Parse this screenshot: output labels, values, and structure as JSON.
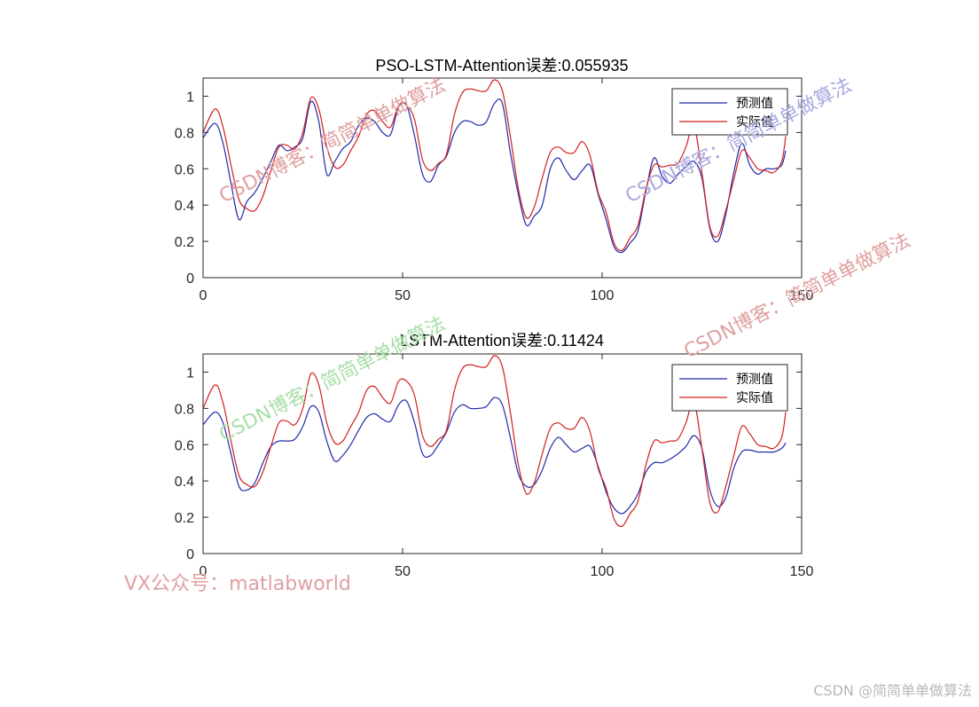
{
  "colors": {
    "predicted": "#1f2aa8",
    "actual": "#d21e1e",
    "axes": "#262626",
    "watermark_red": "#e0a0a0",
    "watermark_blue": "#a9a9e0",
    "watermark_green": "#a8dea8",
    "credit": "#b8b8b8"
  },
  "chart_data": [
    {
      "type": "line",
      "title": "PSO-LSTM-Attention误差:0.055935",
      "xlim": [
        0,
        150
      ],
      "ylim": [
        0,
        1.1
      ],
      "xticks": [
        "0",
        "50",
        "100",
        "150"
      ],
      "yticks": [
        "0",
        "0.2",
        "0.4",
        "0.6",
        "0.8",
        "1"
      ],
      "legend": {
        "position": "top-right",
        "entries": [
          "预测值",
          "实际值"
        ]
      },
      "x": [
        0,
        3,
        5,
        7,
        9,
        11,
        13,
        15,
        17,
        19,
        21,
        23,
        25,
        27,
        29,
        31,
        33,
        35,
        37,
        39,
        41,
        43,
        45,
        47,
        49,
        51,
        53,
        55,
        57,
        59,
        61,
        63,
        65,
        67,
        69,
        71,
        73,
        75,
        77,
        79,
        81,
        83,
        85,
        87,
        89,
        91,
        93,
        95,
        97,
        99,
        101,
        103,
        105,
        107,
        109,
        111,
        113,
        115,
        117,
        119,
        121,
        123,
        125,
        127,
        129,
        131,
        133,
        135,
        137,
        139,
        141,
        143,
        145,
        146
      ],
      "series": [
        {
          "name": "预测值",
          "color_key": "predicted",
          "values": [
            0.77,
            0.85,
            0.74,
            0.52,
            0.32,
            0.42,
            0.47,
            0.55,
            0.64,
            0.73,
            0.7,
            0.72,
            0.77,
            0.97,
            0.86,
            0.57,
            0.64,
            0.71,
            0.75,
            0.84,
            0.88,
            0.86,
            0.8,
            0.79,
            0.94,
            0.95,
            0.78,
            0.57,
            0.53,
            0.62,
            0.67,
            0.8,
            0.86,
            0.86,
            0.84,
            0.86,
            0.96,
            0.96,
            0.69,
            0.46,
            0.29,
            0.34,
            0.4,
            0.6,
            0.66,
            0.59,
            0.54,
            0.59,
            0.62,
            0.46,
            0.32,
            0.17,
            0.14,
            0.19,
            0.26,
            0.48,
            0.66,
            0.56,
            0.52,
            0.57,
            0.61,
            0.64,
            0.55,
            0.27,
            0.2,
            0.35,
            0.58,
            0.74,
            0.62,
            0.57,
            0.6,
            0.6,
            0.62,
            0.7
          ]
        },
        {
          "name": "实际值",
          "color_key": "actual",
          "values": [
            0.8,
            0.93,
            0.83,
            0.62,
            0.43,
            0.38,
            0.37,
            0.45,
            0.59,
            0.72,
            0.73,
            0.71,
            0.8,
            0.99,
            0.93,
            0.72,
            0.61,
            0.62,
            0.7,
            0.78,
            0.9,
            0.92,
            0.86,
            0.83,
            0.95,
            0.95,
            0.87,
            0.65,
            0.59,
            0.63,
            0.68,
            0.9,
            1.02,
            1.04,
            1.03,
            1.03,
            1.09,
            1.03,
            0.78,
            0.49,
            0.33,
            0.39,
            0.55,
            0.69,
            0.72,
            0.69,
            0.69,
            0.75,
            0.67,
            0.47,
            0.36,
            0.19,
            0.15,
            0.22,
            0.29,
            0.49,
            0.62,
            0.61,
            0.62,
            0.63,
            0.72,
            0.84,
            0.58,
            0.28,
            0.23,
            0.37,
            0.54,
            0.7,
            0.66,
            0.6,
            0.59,
            0.58,
            0.64,
            0.78
          ]
        }
      ]
    },
    {
      "type": "line",
      "title": "LSTM-Attention误差:0.11424",
      "xlim": [
        0,
        150
      ],
      "ylim": [
        0,
        1.1
      ],
      "xticks": [
        "0",
        "50",
        "100",
        "150"
      ],
      "yticks": [
        "0",
        "0.2",
        "0.4",
        "0.6",
        "0.8",
        "1"
      ],
      "legend": {
        "position": "top-right",
        "entries": [
          "预测值",
          "实际值"
        ]
      },
      "x": [
        0,
        3,
        5,
        7,
        9,
        11,
        13,
        15,
        17,
        19,
        21,
        23,
        25,
        27,
        29,
        31,
        33,
        35,
        37,
        39,
        41,
        43,
        45,
        47,
        49,
        51,
        53,
        55,
        57,
        59,
        61,
        63,
        65,
        67,
        69,
        71,
        73,
        75,
        77,
        79,
        81,
        83,
        85,
        87,
        89,
        91,
        93,
        95,
        97,
        99,
        101,
        103,
        105,
        107,
        109,
        111,
        113,
        115,
        117,
        119,
        121,
        123,
        125,
        127,
        129,
        131,
        133,
        135,
        137,
        139,
        141,
        143,
        145,
        146
      ],
      "series": [
        {
          "name": "预测值",
          "color_key": "predicted",
          "values": [
            0.71,
            0.78,
            0.72,
            0.55,
            0.37,
            0.35,
            0.39,
            0.5,
            0.59,
            0.62,
            0.62,
            0.63,
            0.7,
            0.81,
            0.78,
            0.62,
            0.51,
            0.54,
            0.6,
            0.68,
            0.75,
            0.77,
            0.74,
            0.73,
            0.82,
            0.84,
            0.72,
            0.55,
            0.54,
            0.6,
            0.67,
            0.78,
            0.82,
            0.8,
            0.8,
            0.81,
            0.86,
            0.82,
            0.64,
            0.44,
            0.37,
            0.38,
            0.46,
            0.58,
            0.64,
            0.6,
            0.56,
            0.58,
            0.59,
            0.48,
            0.34,
            0.25,
            0.22,
            0.26,
            0.33,
            0.45,
            0.5,
            0.5,
            0.52,
            0.55,
            0.59,
            0.65,
            0.58,
            0.35,
            0.26,
            0.31,
            0.47,
            0.56,
            0.57,
            0.56,
            0.56,
            0.56,
            0.58,
            0.61
          ]
        },
        {
          "name": "实际值",
          "color_key": "actual",
          "values": [
            0.8,
            0.93,
            0.83,
            0.62,
            0.43,
            0.38,
            0.37,
            0.45,
            0.59,
            0.72,
            0.73,
            0.71,
            0.8,
            0.99,
            0.93,
            0.72,
            0.61,
            0.62,
            0.7,
            0.78,
            0.9,
            0.92,
            0.86,
            0.83,
            0.95,
            0.95,
            0.87,
            0.65,
            0.59,
            0.63,
            0.68,
            0.9,
            1.02,
            1.04,
            1.03,
            1.03,
            1.09,
            1.03,
            0.78,
            0.49,
            0.33,
            0.39,
            0.55,
            0.69,
            0.72,
            0.69,
            0.69,
            0.75,
            0.67,
            0.47,
            0.36,
            0.19,
            0.15,
            0.22,
            0.29,
            0.49,
            0.62,
            0.61,
            0.62,
            0.63,
            0.72,
            0.84,
            0.58,
            0.28,
            0.23,
            0.37,
            0.54,
            0.7,
            0.66,
            0.6,
            0.59,
            0.58,
            0.64,
            0.78
          ]
        }
      ]
    }
  ],
  "watermarks": {
    "csdn_blog_1": "CSDN博客：简简单单做算法",
    "csdn_blog_2": "CSDN博客：简简单单做算法",
    "csdn_blog_3": "CSDN博客：简简单单做算法",
    "csdn_blog_4": "CSDN博客：简简单单做算法",
    "vx": "VX公众号：matlabworld",
    "credit": "CSDN @简简单单做算法"
  }
}
